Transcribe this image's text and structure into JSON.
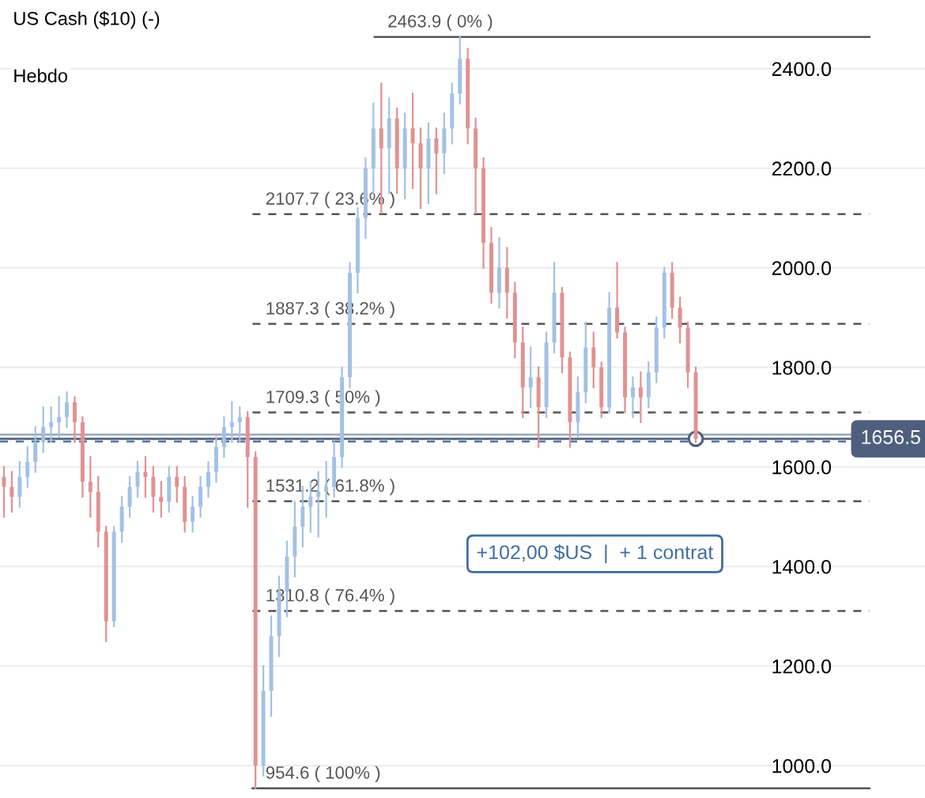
{
  "chart_data": {
    "type": "candlestick",
    "title": "US Cash ($10) (-)",
    "subtitle": "Hebdo",
    "categories": [
      null,
      null,
      null,
      null,
      null,
      null,
      null,
      null,
      null,
      null,
      null,
      null,
      null,
      null,
      null,
      null,
      null,
      null,
      null,
      null,
      null,
      null,
      null,
      null,
      null,
      null,
      null,
      null,
      null,
      null,
      null,
      null,
      null,
      null,
      null,
      null,
      null,
      null,
      null,
      null,
      null,
      null,
      null,
      null,
      null,
      null,
      null,
      null,
      null,
      null,
      null,
      null,
      null,
      null,
      null,
      null,
      null,
      null,
      null,
      null,
      null,
      null,
      null,
      null,
      null,
      null,
      null,
      null,
      null,
      null,
      null,
      null,
      null,
      null,
      null,
      null,
      null,
      null,
      null,
      null,
      null,
      null,
      null,
      null,
      null,
      null,
      null,
      null,
      null
    ],
    "ohlc": [
      [
        1580,
        1600,
        1500,
        1560
      ],
      [
        1560,
        1590,
        1510,
        1540
      ],
      [
        1540,
        1610,
        1520,
        1580
      ],
      [
        1580,
        1640,
        1560,
        1610
      ],
      [
        1610,
        1680,
        1590,
        1650
      ],
      [
        1650,
        1720,
        1630,
        1680
      ],
      [
        1680,
        1720,
        1650,
        1690
      ],
      [
        1690,
        1740,
        1660,
        1700
      ],
      [
        1700,
        1750,
        1680,
        1730
      ],
      [
        1730,
        1740,
        1650,
        1690
      ],
      [
        1690,
        1700,
        1540,
        1570
      ],
      [
        1570,
        1620,
        1500,
        1550
      ],
      [
        1550,
        1580,
        1440,
        1470
      ],
      [
        1470,
        1480,
        1250,
        1290
      ],
      [
        1290,
        1480,
        1280,
        1470
      ],
      [
        1470,
        1540,
        1450,
        1520
      ],
      [
        1520,
        1580,
        1500,
        1560
      ],
      [
        1560,
        1610,
        1540,
        1590
      ],
      [
        1590,
        1620,
        1540,
        1580
      ],
      [
        1580,
        1600,
        1510,
        1540
      ],
      [
        1540,
        1570,
        1500,
        1530
      ],
      [
        1530,
        1600,
        1510,
        1580
      ],
      [
        1580,
        1600,
        1530,
        1560
      ],
      [
        1560,
        1580,
        1470,
        1490
      ],
      [
        1490,
        1540,
        1470,
        1520
      ],
      [
        1520,
        1580,
        1500,
        1560
      ],
      [
        1560,
        1610,
        1540,
        1590
      ],
      [
        1590,
        1660,
        1570,
        1640
      ],
      [
        1640,
        1700,
        1620,
        1680
      ],
      [
        1680,
        1730,
        1650,
        1690
      ],
      [
        1690,
        1720,
        1650,
        1700
      ],
      [
        1700,
        1710,
        1520,
        1620
      ],
      [
        1620,
        1630,
        954.6,
        1000
      ],
      [
        1000,
        1200,
        980,
        1150
      ],
      [
        1150,
        1300,
        1100,
        1260
      ],
      [
        1260,
        1380,
        1220,
        1350
      ],
      [
        1350,
        1450,
        1300,
        1420
      ],
      [
        1420,
        1530,
        1380,
        1480
      ],
      [
        1480,
        1560,
        1440,
        1520
      ],
      [
        1520,
        1570,
        1470,
        1540
      ],
      [
        1540,
        1590,
        1460,
        1550
      ],
      [
        1550,
        1610,
        1500,
        1560
      ],
      [
        1560,
        1650,
        1540,
        1620
      ],
      [
        1620,
        1800,
        1600,
        1780
      ],
      [
        1780,
        2010,
        1760,
        1990
      ],
      [
        1990,
        2120,
        1950,
        2100
      ],
      [
        2100,
        2220,
        2060,
        2200
      ],
      [
        2200,
        2330,
        2150,
        2280
      ],
      [
        2280,
        2370,
        2110,
        2240
      ],
      [
        2240,
        2340,
        2150,
        2300
      ],
      [
        2300,
        2320,
        2150,
        2200
      ],
      [
        2200,
        2310,
        2140,
        2280
      ],
      [
        2280,
        2350,
        2160,
        2250
      ],
      [
        2250,
        2280,
        2120,
        2200
      ],
      [
        2200,
        2290,
        2130,
        2260
      ],
      [
        2260,
        2280,
        2150,
        2230
      ],
      [
        2230,
        2310,
        2190,
        2280
      ],
      [
        2280,
        2370,
        2250,
        2350
      ],
      [
        2350,
        2463.9,
        2330,
        2420
      ],
      [
        2420,
        2440,
        2250,
        2280
      ],
      [
        2280,
        2300,
        2110,
        2200
      ],
      [
        2200,
        2220,
        2000,
        2050
      ],
      [
        2050,
        2080,
        1930,
        1950
      ],
      [
        1950,
        2060,
        1920,
        2000
      ],
      [
        2000,
        2040,
        1900,
        1950
      ],
      [
        1950,
        1970,
        1820,
        1850
      ],
      [
        1850,
        1880,
        1700,
        1760
      ],
      [
        1760,
        1840,
        1720,
        1780
      ],
      [
        1780,
        1800,
        1640,
        1720
      ],
      [
        1720,
        1870,
        1700,
        1850
      ],
      [
        1850,
        2010,
        1830,
        1950
      ],
      [
        1950,
        1960,
        1790,
        1820
      ],
      [
        1820,
        1830,
        1640,
        1690
      ],
      [
        1690,
        1780,
        1660,
        1750
      ],
      [
        1750,
        1890,
        1730,
        1840
      ],
      [
        1840,
        1870,
        1760,
        1800
      ],
      [
        1800,
        1810,
        1700,
        1720
      ],
      [
        1720,
        1950,
        1710,
        1920
      ],
      [
        1920,
        2010,
        1860,
        1870
      ],
      [
        1870,
        1880,
        1710,
        1740
      ],
      [
        1740,
        1780,
        1700,
        1760
      ],
      [
        1760,
        1790,
        1690,
        1740
      ],
      [
        1740,
        1810,
        1720,
        1790
      ],
      [
        1790,
        1900,
        1770,
        1880
      ],
      [
        1880,
        2000,
        1860,
        1990
      ],
      [
        1990,
        2010,
        1900,
        1920
      ],
      [
        1920,
        1940,
        1850,
        1880
      ],
      [
        1880,
        1890,
        1760,
        1790
      ],
      [
        1790,
        1800,
        1650,
        1656.5
      ]
    ],
    "colors": [
      "#e29191",
      "#e29191",
      "#a3c1e5",
      "#a3c1e5",
      "#a3c1e5",
      "#a3c1e5",
      "#a3c1e5",
      "#a3c1e5",
      "#a3c1e5",
      "#e29191",
      "#e29191",
      "#e29191",
      "#e29191",
      "#e29191",
      "#a3c1e5",
      "#a3c1e5",
      "#a3c1e5",
      "#a3c1e5",
      "#e29191",
      "#e29191",
      "#e29191",
      "#a3c1e5",
      "#e29191",
      "#e29191",
      "#a3c1e5",
      "#a3c1e5",
      "#a3c1e5",
      "#a3c1e5",
      "#a3c1e5",
      "#a3c1e5",
      "#a3c1e5",
      "#e29191",
      "#e29191",
      "#a3c1e5",
      "#a3c1e5",
      "#a3c1e5",
      "#a3c1e5",
      "#a3c1e5",
      "#a3c1e5",
      "#a3c1e5",
      "#a3c1e5",
      "#a3c1e5",
      "#a3c1e5",
      "#a3c1e5",
      "#a3c1e5",
      "#a3c1e5",
      "#a3c1e5",
      "#a3c1e5",
      "#e29191",
      "#a3c1e5",
      "#e29191",
      "#a3c1e5",
      "#e29191",
      "#e29191",
      "#a3c1e5",
      "#e29191",
      "#a3c1e5",
      "#a3c1e5",
      "#a3c1e5",
      "#e29191",
      "#e29191",
      "#e29191",
      "#e29191",
      "#a3c1e5",
      "#e29191",
      "#e29191",
      "#e29191",
      "#a3c1e5",
      "#e29191",
      "#a3c1e5",
      "#a3c1e5",
      "#e29191",
      "#e29191",
      "#a3c1e5",
      "#a3c1e5",
      "#e29191",
      "#e29191",
      "#a3c1e5",
      "#e29191",
      "#e29191",
      "#a3c1e5",
      "#e29191",
      "#a3c1e5",
      "#a3c1e5",
      "#a3c1e5",
      "#e29191",
      "#e29191",
      "#e29191",
      "#e29191"
    ],
    "ylim": [
      935,
      2538
    ],
    "yticks": [
      {
        "value": 1000,
        "label": "1000.0"
      },
      {
        "value": 1200,
        "label": "1200.0"
      },
      {
        "value": 1400,
        "label": "1400.0"
      },
      {
        "value": 1600,
        "label": "1600.0"
      },
      {
        "value": 1800,
        "label": "1800.0"
      },
      {
        "value": 2000,
        "label": "2000.0"
      },
      {
        "value": 2200,
        "label": "2200.0"
      },
      {
        "value": 2400,
        "label": "2400.0"
      }
    ],
    "grid": "y",
    "ref_lines": [
      {
        "axis": "y",
        "value": 2463.9,
        "label": "2463.9 ( 0% )",
        "color": "#555555",
        "line_style": "solid"
      },
      {
        "axis": "y",
        "value": 2107.7,
        "label": "2107.7 ( 23.6% )",
        "color": "#555555",
        "line_style": "dashed"
      },
      {
        "axis": "y",
        "value": 1887.3,
        "label": "1887.3 ( 38.2% )",
        "color": "#555555",
        "line_style": "dashed"
      },
      {
        "axis": "y",
        "value": 1709.3,
        "label": "1709.3 ( 50% )",
        "color": "#555555",
        "line_style": "dashed"
      },
      {
        "axis": "y",
        "value": 1531.2,
        "label": "1531.2 ( 61.8% )",
        "color": "#555555",
        "line_style": "dashed"
      },
      {
        "axis": "y",
        "value": 1310.8,
        "label": "1310.8 ( 76.4% )",
        "color": "#555555",
        "line_style": "dashed"
      },
      {
        "axis": "y",
        "value": 954.6,
        "label": "954.6 ( 100% )",
        "color": "#555555",
        "line_style": "solid"
      },
      {
        "axis": "y",
        "value": 1665,
        "label": null,
        "color": "#9aa6b8",
        "line_style": "solid"
      },
      {
        "axis": "y",
        "value": 1651,
        "label": null,
        "color": "#4a78b0",
        "line_style": "dashed"
      },
      {
        "axis": "y",
        "value": 1656.5,
        "label": "1656.5",
        "color": "#4e5f7d",
        "line_style": "solid"
      }
    ],
    "annotations": [
      "+102,00 $US  |  + 1 contrat"
    ]
  }
}
